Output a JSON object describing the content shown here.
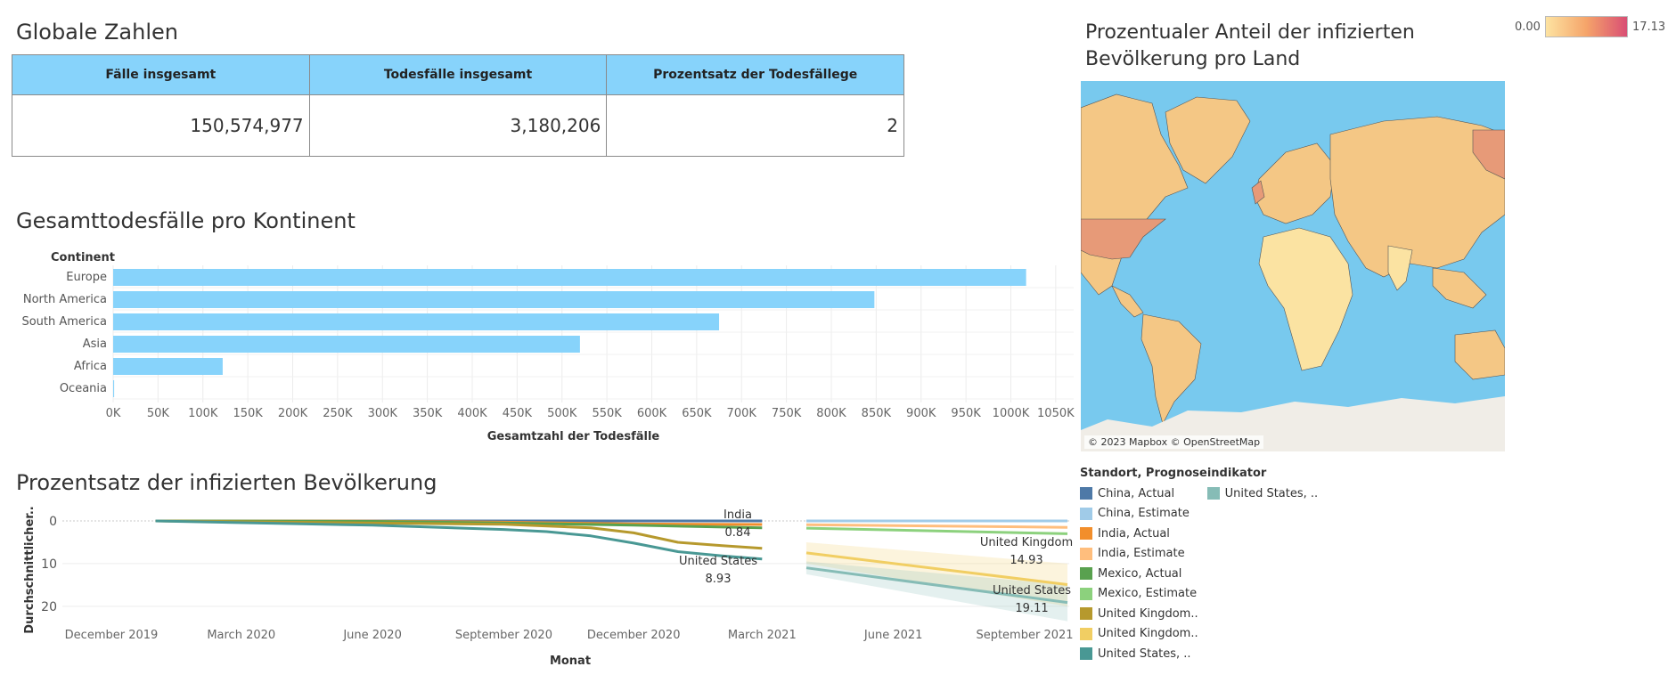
{
  "kpi": {
    "title": "Globale Zahlen",
    "headers": [
      "Fälle insgesamt",
      "Todesfälle insgesamt",
      "Prozentsatz der Todesfällege"
    ],
    "values": [
      "150,574,977",
      "3,180,206",
      "2"
    ]
  },
  "bar": {
    "title": "Gesamttodesfälle pro Kontinent",
    "axis_header": "Continent"
  },
  "line": {
    "title": "Prozentsatz der infizierten Bevölkerung"
  },
  "map": {
    "title_line1": "Prozentualer Anteil der infizierten",
    "title_line2": "Bevölkerung pro Land",
    "attribution": "© 2023 Mapbox © OpenStreetMap",
    "scale_min": "0.00",
    "scale_max": "17.13",
    "scale_colors": [
      "#fde3a1",
      "#f5a46a",
      "#d94e74"
    ],
    "land_color": "#f4c785",
    "ocean_color": "#78c9ee",
    "ice_color": "#f0ede7"
  },
  "legend": {
    "title": "Standort, Prognoseindikator",
    "col1": [
      {
        "label": "China, Actual",
        "color": "#4e79a7"
      },
      {
        "label": "China, Estimate",
        "color": "#a0cbe8"
      },
      {
        "label": "India, Actual",
        "color": "#f28e2b"
      },
      {
        "label": "India, Estimate",
        "color": "#ffbe7d"
      },
      {
        "label": "Mexico, Actual",
        "color": "#59a14f"
      },
      {
        "label": "Mexico, Estimate",
        "color": "#8cd17d"
      },
      {
        "label": "United Kingdom..",
        "color": "#b6992d"
      },
      {
        "label": "United Kingdom..",
        "color": "#f1ce63"
      },
      {
        "label": "United States, ..",
        "color": "#499894"
      }
    ],
    "col2": [
      {
        "label": "United States, ..",
        "color": "#86bcb6"
      }
    ]
  },
  "chart_data": [
    {
      "type": "bar",
      "title": "Gesamttodesfälle pro Kontinent",
      "categories": [
        "Europe",
        "North America",
        "South America",
        "Asia",
        "Africa",
        "Oceania"
      ],
      "values": [
        1017000,
        848000,
        675000,
        520000,
        122000,
        1100
      ],
      "xlabel": "Gesamtzahl der Todesfälle",
      "ylabel": "Continent",
      "xlim": [
        0,
        1070000
      ],
      "xticks": [
        0,
        50000,
        100000,
        150000,
        200000,
        250000,
        300000,
        350000,
        400000,
        450000,
        500000,
        550000,
        600000,
        650000,
        700000,
        750000,
        800000,
        850000,
        900000,
        950000,
        1000000,
        1050000
      ],
      "xtick_labels": [
        "0K",
        "50K",
        "100K",
        "150K",
        "200K",
        "250K",
        "300K",
        "350K",
        "400K",
        "450K",
        "500K",
        "550K",
        "600K",
        "650K",
        "700K",
        "750K",
        "800K",
        "850K",
        "900K",
        "950K",
        "1000K",
        "1050K"
      ],
      "color": "#87d3fb",
      "grid": true
    },
    {
      "type": "line",
      "title": "Prozentsatz der infizierten Bevölkerung",
      "xlabel": "Monat",
      "ylabel": "Durchschnittlicher..",
      "x_tick_labels": [
        "December 2019",
        "March 2020",
        "June 2020",
        "September 2020",
        "December 2020",
        "March 2021",
        "June 2021",
        "September 2021"
      ],
      "x_tick_dates": [
        "2019-12",
        "2020-03",
        "2020-06",
        "2020-09",
        "2020-12",
        "2021-03",
        "2021-06",
        "2021-09"
      ],
      "ylim": [
        0,
        24
      ],
      "yticks": [
        0,
        10,
        20
      ],
      "y_inverted": true,
      "series": [
        {
          "name": "China, Actual",
          "color": "#4e79a7",
          "x": [
            "2020-01",
            "2020-06",
            "2020-12",
            "2021-03"
          ],
          "y": [
            0,
            0.01,
            0.01,
            0.01
          ]
        },
        {
          "name": "China, Estimate",
          "color": "#a0cbe8",
          "x": [
            "2021-04",
            "2021-10"
          ],
          "y": [
            0.01,
            0.01
          ]
        },
        {
          "name": "India, Actual",
          "color": "#f28e2b",
          "x": [
            "2020-01",
            "2020-06",
            "2020-09",
            "2020-12",
            "2021-03"
          ],
          "y": [
            0,
            0.05,
            0.3,
            0.7,
            0.84
          ]
        },
        {
          "name": "India, Estimate",
          "color": "#ffbe7d",
          "x": [
            "2021-04",
            "2021-10"
          ],
          "y": [
            0.9,
            1.5
          ]
        },
        {
          "name": "Mexico, Actual",
          "color": "#59a14f",
          "x": [
            "2020-01",
            "2020-06",
            "2020-09",
            "2020-12",
            "2021-03"
          ],
          "y": [
            0,
            0.1,
            0.5,
            1.0,
            1.6
          ]
        },
        {
          "name": "Mexico, Estimate",
          "color": "#8cd17d",
          "x": [
            "2021-04",
            "2021-10"
          ],
          "y": [
            1.7,
            3.0
          ]
        },
        {
          "name": "United Kingdom, Actual",
          "color": "#b6992d",
          "x": [
            "2020-01",
            "2020-06",
            "2020-09",
            "2020-11",
            "2020-12",
            "2021-01",
            "2021-02",
            "2021-03"
          ],
          "y": [
            0,
            0.5,
            0.8,
            1.6,
            2.8,
            5.0,
            5.8,
            6.4
          ]
        },
        {
          "name": "United Kingdom, Estimate",
          "color": "#f1ce63",
          "x": [
            "2021-04",
            "2021-10"
          ],
          "y": [
            7.5,
            14.93
          ],
          "band": [
            [
              5,
              10
            ],
            [
              10,
              20
            ]
          ]
        },
        {
          "name": "United States, Actual",
          "color": "#499894",
          "x": [
            "2020-01",
            "2020-06",
            "2020-09",
            "2020-10",
            "2020-11",
            "2020-12",
            "2021-01",
            "2021-02",
            "2021-03"
          ],
          "y": [
            0,
            1.0,
            2.0,
            2.5,
            3.5,
            5.2,
            7.2,
            8.2,
            8.93
          ]
        },
        {
          "name": "United States, Estimate",
          "color": "#86bcb6",
          "x": [
            "2021-04",
            "2021-10"
          ],
          "y": [
            11,
            19.11
          ],
          "band": [
            [
              9.5,
              12.5
            ],
            [
              15,
              23.5
            ]
          ]
        }
      ],
      "annotations": [
        {
          "label": "India",
          "value": "0.84"
        },
        {
          "label": "United States",
          "value": "8.93"
        },
        {
          "label": "United Kingdom",
          "value": "14.93"
        },
        {
          "label": "United States",
          "value": "19.11"
        }
      ]
    }
  ]
}
